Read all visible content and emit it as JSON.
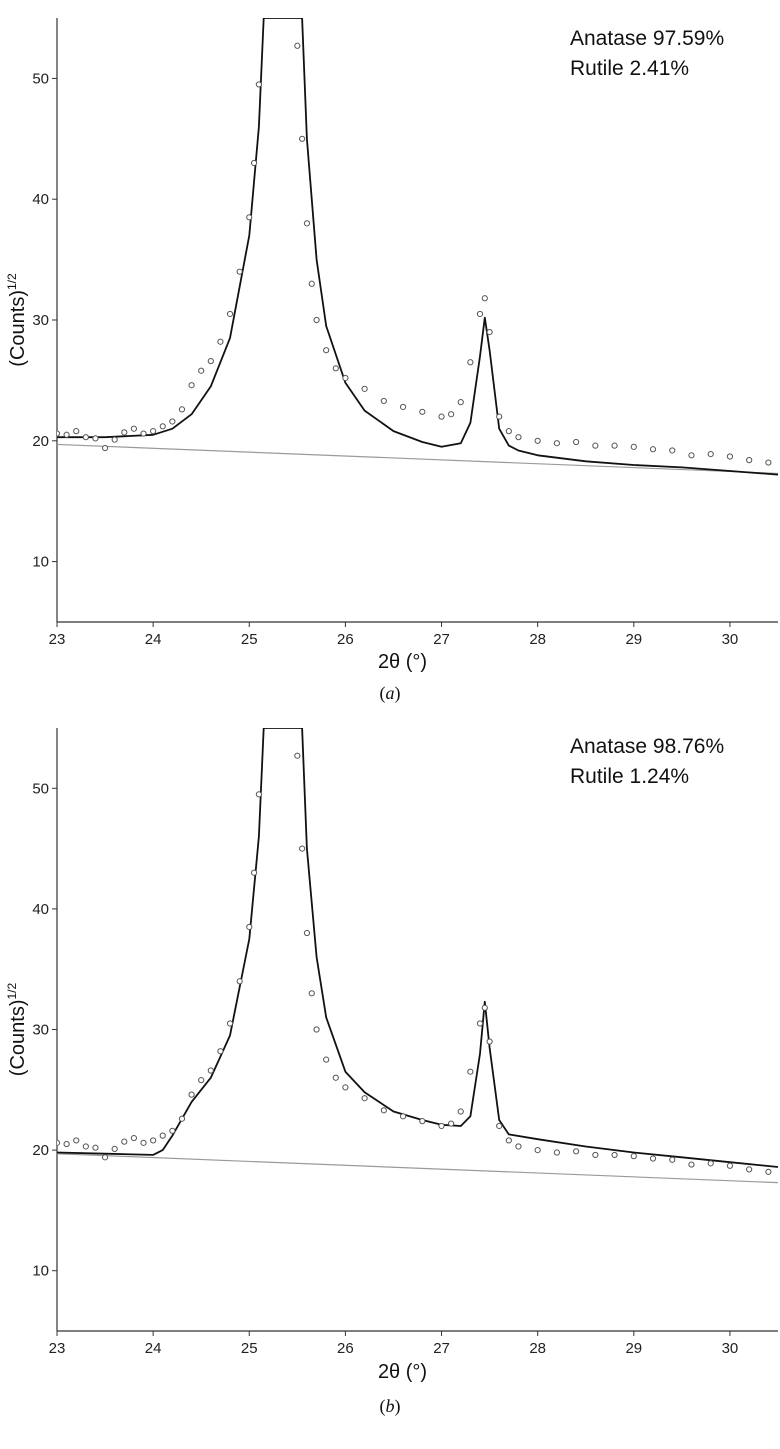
{
  "chart_data": [
    {
      "type": "scatter",
      "panel": "(a)",
      "caption_letter": "a",
      "xlabel": "2θ (°)",
      "ylabel": "(Counts)",
      "ylabel_superscript": "1/2",
      "xlim": [
        23,
        30.5
      ],
      "ylim": [
        5,
        55
      ],
      "xticks": [
        23,
        24,
        25,
        26,
        27,
        28,
        29,
        30
      ],
      "yticks": [
        10,
        20,
        30,
        40,
        50
      ],
      "annotations": [
        "Anatase 97.59%",
        "Rutile 2.41%"
      ],
      "series": [
        {
          "kind": "observed-points",
          "x": [
            23.0,
            23.1,
            23.2,
            23.3,
            23.4,
            23.5,
            23.6,
            23.7,
            23.8,
            23.9,
            24.0,
            24.1,
            24.2,
            24.3,
            24.4,
            24.5,
            24.6,
            24.7,
            24.8,
            24.9,
            25.0,
            25.05,
            25.1,
            25.5,
            25.55,
            25.6,
            25.65,
            25.7,
            25.8,
            25.9,
            26.0,
            26.2,
            26.4,
            26.6,
            26.8,
            27.0,
            27.1,
            27.2,
            27.3,
            27.4,
            27.45,
            27.5,
            27.6,
            27.7,
            27.8,
            28.0,
            28.2,
            28.4,
            28.6,
            28.8,
            29.0,
            29.2,
            29.4,
            29.6,
            29.8,
            30.0,
            30.2,
            30.4
          ],
          "y": [
            20.6,
            20.5,
            20.8,
            20.3,
            20.2,
            19.4,
            20.1,
            20.7,
            21.0,
            20.6,
            20.8,
            21.2,
            21.6,
            22.6,
            24.6,
            25.8,
            26.6,
            28.2,
            30.5,
            34.0,
            38.5,
            43.0,
            49.5,
            52.7,
            45.0,
            38.0,
            33.0,
            30.0,
            27.5,
            26.0,
            25.2,
            24.3,
            23.3,
            22.8,
            22.4,
            22.0,
            22.2,
            23.2,
            26.5,
            30.5,
            31.8,
            29.0,
            22.0,
            20.8,
            20.3,
            20.0,
            19.8,
            19.9,
            19.6,
            19.6,
            19.5,
            19.3,
            19.2,
            18.8,
            18.9,
            18.7,
            18.4,
            18.2
          ]
        },
        {
          "kind": "fit-line",
          "x": [
            23.0,
            23.5,
            24.0,
            24.2,
            24.4,
            24.6,
            24.8,
            25.0,
            25.1,
            25.15,
            25.55,
            25.6,
            25.7,
            25.8,
            26.0,
            26.2,
            26.5,
            26.8,
            27.0,
            27.2,
            27.3,
            27.4,
            27.45,
            27.5,
            27.6,
            27.7,
            27.8,
            28.0,
            28.5,
            29.0,
            29.5,
            30.0,
            30.5
          ],
          "y": [
            20.3,
            20.3,
            20.5,
            21.0,
            22.2,
            24.5,
            28.5,
            37.0,
            46.0,
            55.0,
            55.0,
            45.0,
            35.0,
            29.5,
            24.8,
            22.5,
            20.8,
            19.9,
            19.5,
            19.8,
            21.5,
            27.0,
            30.2,
            27.5,
            21.0,
            19.6,
            19.2,
            18.8,
            18.3,
            18.0,
            17.8,
            17.5,
            17.2
          ]
        },
        {
          "kind": "background-line",
          "x": [
            23.0,
            30.5
          ],
          "y": [
            19.7,
            17.3
          ]
        }
      ]
    },
    {
      "type": "scatter",
      "panel": "(b)",
      "caption_letter": "b",
      "xlabel": "2θ (°)",
      "ylabel": "(Counts)",
      "ylabel_superscript": "1/2",
      "xlim": [
        23,
        30.5
      ],
      "ylim": [
        5,
        55
      ],
      "xticks": [
        23,
        24,
        25,
        26,
        27,
        28,
        29,
        30
      ],
      "yticks": [
        10,
        20,
        30,
        40,
        50
      ],
      "annotations": [
        "Anatase 98.76%",
        "Rutile 1.24%"
      ],
      "series": [
        {
          "kind": "observed-points",
          "x": [
            23.0,
            23.1,
            23.2,
            23.3,
            23.4,
            23.5,
            23.6,
            23.7,
            23.8,
            23.9,
            24.0,
            24.1,
            24.2,
            24.3,
            24.4,
            24.5,
            24.6,
            24.7,
            24.8,
            24.9,
            25.0,
            25.05,
            25.1,
            25.5,
            25.55,
            25.6,
            25.65,
            25.7,
            25.8,
            25.9,
            26.0,
            26.2,
            26.4,
            26.6,
            26.8,
            27.0,
            27.1,
            27.2,
            27.3,
            27.4,
            27.45,
            27.5,
            27.6,
            27.7,
            27.8,
            28.0,
            28.2,
            28.4,
            28.6,
            28.8,
            29.0,
            29.2,
            29.4,
            29.6,
            29.8,
            30.0,
            30.2,
            30.4
          ],
          "y": [
            20.6,
            20.5,
            20.8,
            20.3,
            20.2,
            19.4,
            20.1,
            20.7,
            21.0,
            20.6,
            20.8,
            21.2,
            21.6,
            22.6,
            24.6,
            25.8,
            26.6,
            28.2,
            30.5,
            34.0,
            38.5,
            43.0,
            49.5,
            52.7,
            45.0,
            38.0,
            33.0,
            30.0,
            27.5,
            26.0,
            25.2,
            24.3,
            23.3,
            22.8,
            22.4,
            22.0,
            22.2,
            23.2,
            26.5,
            30.5,
            31.8,
            29.0,
            22.0,
            20.8,
            20.3,
            20.0,
            19.8,
            19.9,
            19.6,
            19.6,
            19.5,
            19.3,
            19.2,
            18.8,
            18.9,
            18.7,
            18.4,
            18.2
          ]
        },
        {
          "kind": "fit-line",
          "x": [
            23.0,
            23.5,
            24.0,
            24.1,
            24.2,
            24.4,
            24.6,
            24.8,
            25.0,
            25.1,
            25.15,
            25.55,
            25.6,
            25.7,
            25.8,
            26.0,
            26.2,
            26.5,
            26.8,
            27.0,
            27.2,
            27.3,
            27.4,
            27.45,
            27.5,
            27.6,
            27.7,
            28.0,
            28.5,
            29.0,
            29.5,
            30.0,
            30.5
          ],
          "y": [
            19.8,
            19.7,
            19.6,
            20.0,
            21.2,
            24.0,
            26.0,
            29.5,
            37.5,
            46.0,
            55.0,
            55.0,
            45.0,
            36.0,
            31.0,
            26.5,
            24.8,
            23.2,
            22.5,
            22.1,
            22.0,
            22.8,
            28.0,
            32.3,
            28.5,
            22.5,
            21.3,
            20.9,
            20.3,
            19.8,
            19.4,
            19.0,
            18.6
          ]
        },
        {
          "kind": "background-line",
          "x": [
            23.0,
            30.5
          ],
          "y": [
            19.7,
            17.3
          ]
        }
      ]
    }
  ]
}
